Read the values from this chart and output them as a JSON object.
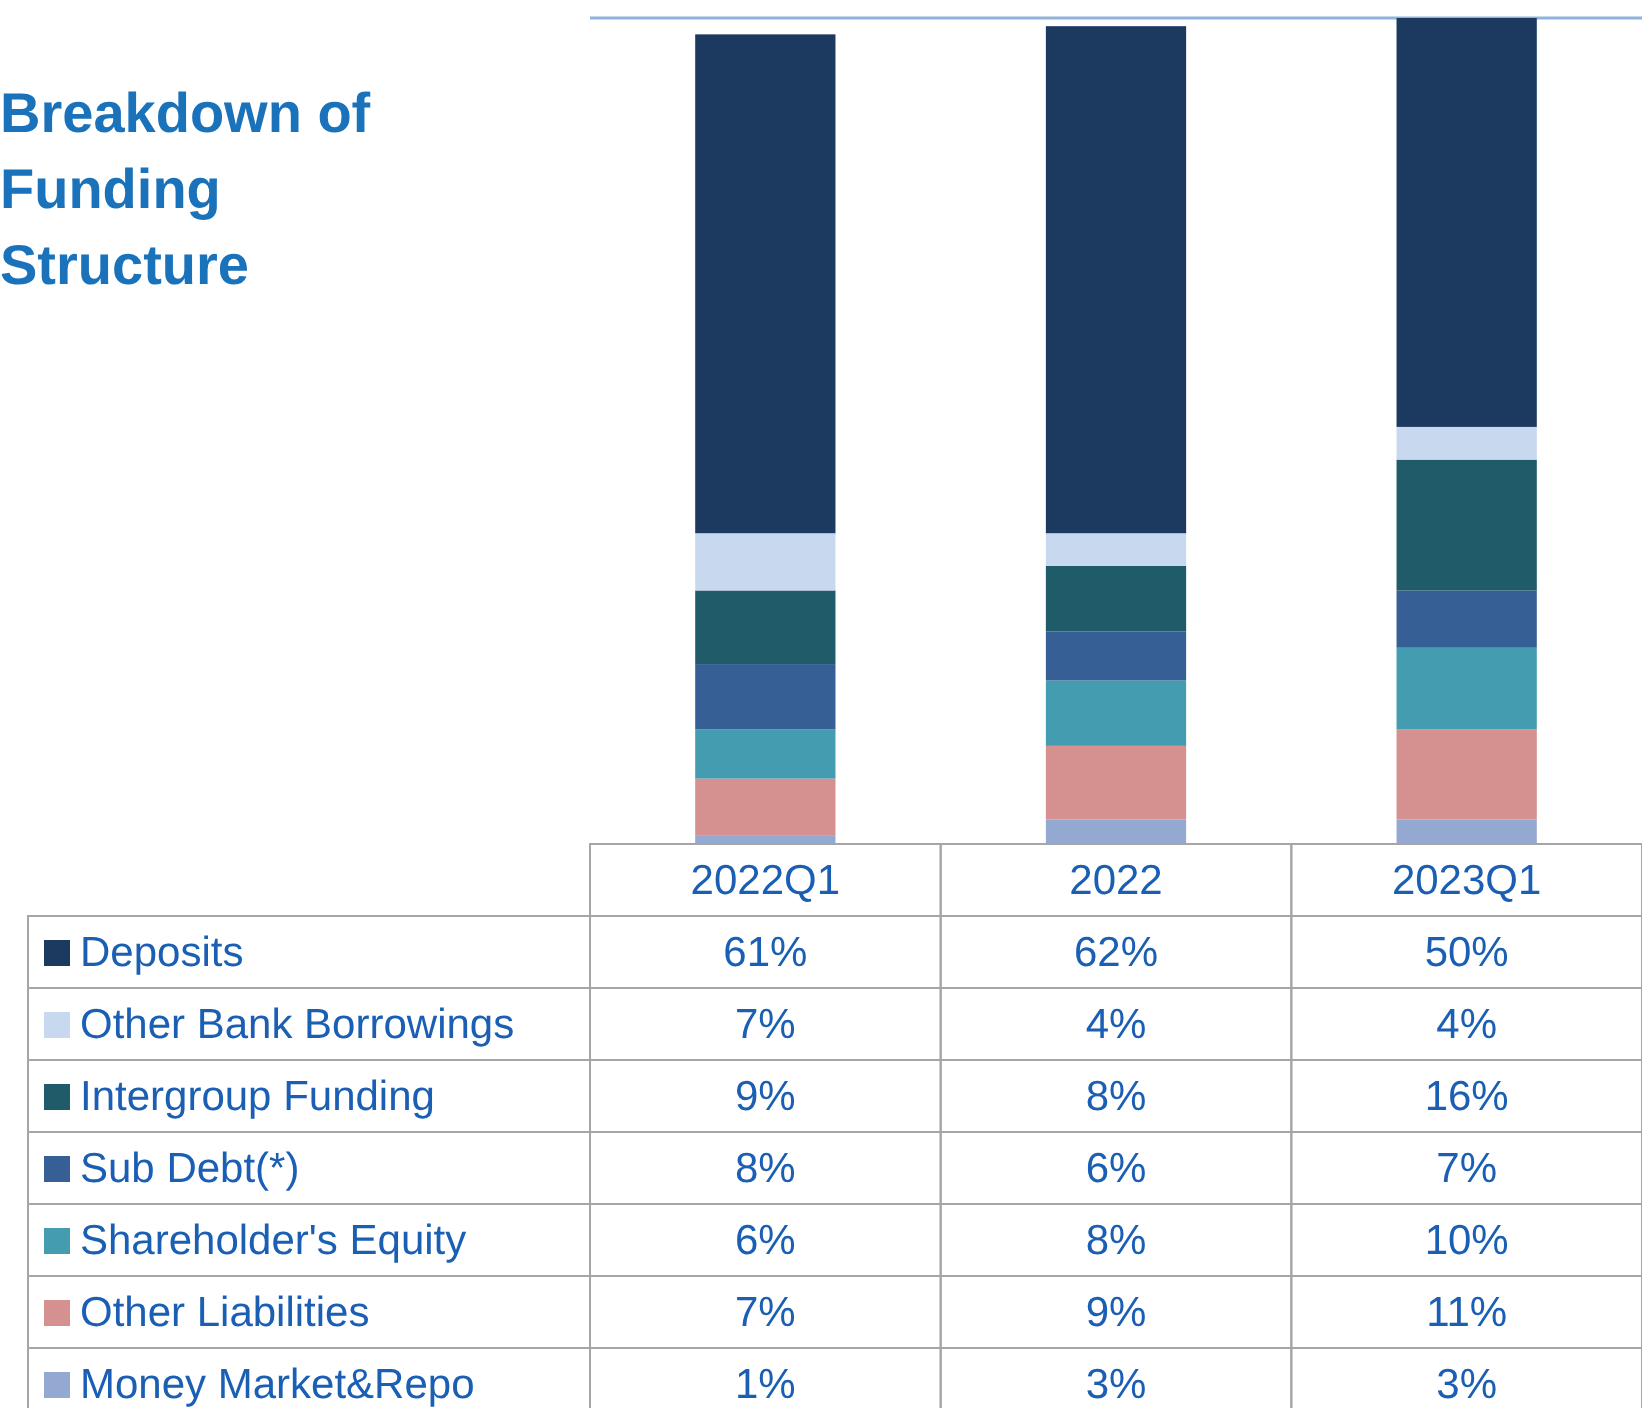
{
  "chart_data": {
    "type": "bar",
    "title": "Breakdown of Funding Structure",
    "categories": [
      "2022Q1",
      "2022",
      "2023Q1"
    ],
    "stacked": true,
    "legend": "left",
    "series": [
      {
        "name": "Money Market&Repo",
        "color": "#94a9d2",
        "values": [
          1,
          3,
          3
        ],
        "value_labels": [
          "1%",
          "3%",
          "3%"
        ]
      },
      {
        "name": "Other Liabilities",
        "color": "#d4918f",
        "values": [
          7,
          9,
          11
        ],
        "value_labels": [
          "7%",
          "9%",
          "11%"
        ]
      },
      {
        "name": "Shareholder's Equity",
        "color": "#449cb1",
        "values": [
          6,
          8,
          10
        ],
        "value_labels": [
          "6%",
          "8%",
          "10%"
        ]
      },
      {
        "name": "Sub Debt(*)",
        "color": "#365f96",
        "values": [
          8,
          6,
          7
        ],
        "value_labels": [
          "8%",
          "6%",
          "7%"
        ]
      },
      {
        "name": "Intergroup Funding",
        "color": "#1f5b68",
        "values": [
          9,
          8,
          16
        ],
        "value_labels": [
          "9%",
          "8%",
          "16%"
        ]
      },
      {
        "name": "Other Bank Borrowings",
        "color": "#c8d9ef",
        "values": [
          7,
          4,
          4
        ],
        "value_labels": [
          "7%",
          "4%",
          "4%"
        ]
      },
      {
        "name": "Deposits",
        "color": "#1c3a60",
        "values": [
          61,
          62,
          50
        ],
        "value_labels": [
          "61%",
          "62%",
          "50%"
        ]
      }
    ]
  }
}
